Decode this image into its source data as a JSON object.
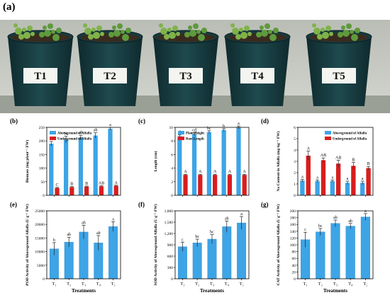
{
  "figure": {
    "panel_a_label": "(a)",
    "pot_labels": [
      "T1",
      "T2",
      "T3",
      "T4",
      "T5"
    ]
  },
  "colors": {
    "blue": "#3da4e6",
    "red": "#d81e1e",
    "photo_bg": "#c3c8c1"
  },
  "chart_data": [
    {
      "panel": "(b)",
      "type": "bar",
      "ylabel": "Biomass (mg plant⁻¹ FW)",
      "ylim": [
        0,
        250
      ],
      "yticks": [
        "0",
        "50",
        "100",
        "150",
        "200",
        "250"
      ],
      "categories": [
        "",
        "",
        "",
        "",
        ""
      ],
      "series": [
        {
          "name": "Aboveground of Alfalfa",
          "values": [
            190,
            205,
            213,
            220,
            245
          ],
          "errors": [
            8,
            12,
            8,
            10,
            5
          ],
          "letters": [
            "c",
            "bc",
            "ab",
            "ab",
            "a"
          ]
        },
        {
          "name": "Underground of Alfalfa",
          "values": [
            27,
            30,
            32,
            33,
            35
          ],
          "errors": [
            2,
            2,
            2,
            2,
            2
          ],
          "letters": [
            "C",
            "B",
            "B",
            "AB",
            "A"
          ]
        }
      ],
      "legend": "top-left"
    },
    {
      "panel": "(c)",
      "type": "bar",
      "ylabel": "Length (cm)",
      "ylim": [
        0,
        10
      ],
      "yticks": [
        "0",
        "2",
        "4",
        "6",
        "8",
        "10"
      ],
      "categories": [
        "",
        "",
        "",
        "",
        ""
      ],
      "series": [
        {
          "name": "Plant Height",
          "values": [
            8.7,
            9.0,
            9.3,
            9.6,
            10.0
          ],
          "errors": [
            0.2,
            0.2,
            0.2,
            0.2,
            0.2
          ],
          "letters": [
            "d",
            "cd",
            "bc",
            "b",
            "a"
          ]
        },
        {
          "name": "Root Length",
          "values": [
            3.0,
            3.0,
            3.0,
            3.0,
            3.0
          ],
          "errors": [
            0.1,
            0.1,
            0.1,
            0.1,
            0.1
          ],
          "letters": [
            "A",
            "A",
            "A",
            "A",
            "A"
          ]
        }
      ],
      "legend": "top-left"
    },
    {
      "panel": "(d)",
      "type": "bar",
      "ylabel": "Na Content in Alfalfa (mg·kg⁻¹ FW)",
      "ylim": [
        0,
        6
      ],
      "yticks": [
        "0",
        "1",
        "2",
        "3",
        "4",
        "5",
        "6"
      ],
      "categories": [
        "",
        "",
        "",
        "",
        ""
      ],
      "series": [
        {
          "name": "Aboveground of Alfalfa",
          "values": [
            1.3,
            1.25,
            1.25,
            1.1,
            1.1
          ],
          "errors": [
            0.1,
            0.1,
            0.1,
            0.15,
            0.15
          ],
          "letters": [
            "a",
            "a",
            "a",
            "a",
            "a"
          ]
        },
        {
          "name": "Underground of Alfalfa",
          "values": [
            3.5,
            3.1,
            2.8,
            2.6,
            2.4
          ],
          "errors": [
            0.4,
            0.2,
            0.3,
            0.3,
            0.15
          ],
          "letters": [
            "A",
            "AB",
            "AB",
            "B",
            "B"
          ]
        }
      ],
      "legend": "top-right"
    },
    {
      "panel": "(e)",
      "type": "bar",
      "ylabel": "POD Activity of Aboveground Alfalfa (U g⁻¹ FW)",
      "xlabel": "Treatments",
      "ylim": [
        0,
        25000
      ],
      "yticks": [
        "0",
        "5000",
        "10000",
        "15000",
        "20000",
        "25000"
      ],
      "categories": [
        "T₁",
        "T₂",
        "T₃",
        "T₄",
        "T₅"
      ],
      "series": [
        {
          "values": [
            11000,
            13500,
            17200,
            13200,
            19200
          ],
          "errors": [
            2300,
            1800,
            2500,
            2700,
            1800
          ],
          "letters": [
            "b",
            "ab",
            "ab",
            "ab",
            "a"
          ]
        }
      ]
    },
    {
      "panel": "(f)",
      "type": "bar",
      "ylabel": "SOD Activity of Aboveground Alfalfa (U g⁻¹ FW)",
      "xlabel": "Treatments",
      "ylim": [
        0,
        1800
      ],
      "yticks": [
        "0",
        "300",
        "600",
        "900",
        "1,200",
        "1,500",
        "1,800"
      ],
      "categories": [
        "T₁",
        "T₂",
        "T₃",
        "T₄",
        "T₅"
      ],
      "series": [
        {
          "values": [
            850,
            950,
            1050,
            1380,
            1480
          ],
          "errors": [
            120,
            100,
            120,
            150,
            170
          ],
          "letters": [
            "c",
            "bc",
            "bc",
            "ab",
            "a"
          ]
        }
      ]
    },
    {
      "panel": "(g)",
      "type": "bar",
      "ylabel": "CAT Activity of Aboveground Alfalfa (U g⁻¹ FW)",
      "xlabel": "Treatments",
      "ylim": [
        0,
        200
      ],
      "yticks": [
        "0",
        "20",
        "40",
        "60",
        "80",
        "100",
        "120",
        "140",
        "160",
        "180",
        "200"
      ],
      "categories": [
        "T₁",
        "T₂",
        "T₃",
        "T₄",
        "T₅"
      ],
      "series": [
        {
          "values": [
            115,
            138,
            163,
            155,
            182
          ],
          "errors": [
            22,
            10,
            10,
            8,
            10
          ],
          "letters": [
            "c",
            "bc",
            "ab",
            "ab",
            "a"
          ]
        }
      ]
    }
  ]
}
